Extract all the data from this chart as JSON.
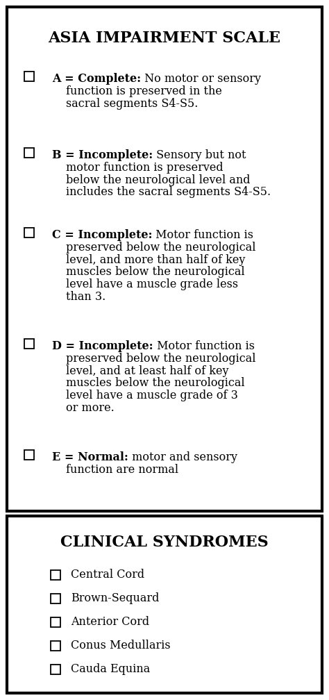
{
  "title1": "ASIA IMPAIRMENT SCALE",
  "title2": "CLINICAL SYNDROMES",
  "items": [
    {
      "bold_text": "A = Complete:",
      "normal_text": " No motor or sensory\nfunction is preserved in the\nsacral segments S4-S5."
    },
    {
      "bold_text": "B = Incomplete:",
      "normal_text": " Sensory but not\nmotor function is preserved\nbelow the neurological level and\nincludes the sacral segments S4-S5."
    },
    {
      "bold_text": "C = Incomplete:",
      "normal_text": " Motor function is\npreserved below the neurological\nlevel, and more than half of key\nmuscles below the neurological\nlevel have a muscle grade less\nthan 3."
    },
    {
      "bold_text": "D = Incomplete:",
      "normal_text": " Motor function is\npreserved below the neurological\nlevel, and at least half of key\nmuscles below the neurological\nlevel have a muscle grade of 3\nor more."
    },
    {
      "bold_text": "E = Normal:",
      "normal_text": " motor and sensory\nfunction are normal"
    }
  ],
  "syndromes": [
    "Central Cord",
    "Brown-Sequard",
    "Anterior Cord",
    "Conus Medullaris",
    "Cauda Equina"
  ],
  "bg_color": "#ffffff",
  "border_color": "#000000",
  "text_color": "#000000",
  "title_fontsize": 16,
  "item_fontsize": 11.5,
  "syndrome_fontsize": 11.5,
  "fig_width": 4.74,
  "fig_height": 10.08,
  "dpi": 100
}
